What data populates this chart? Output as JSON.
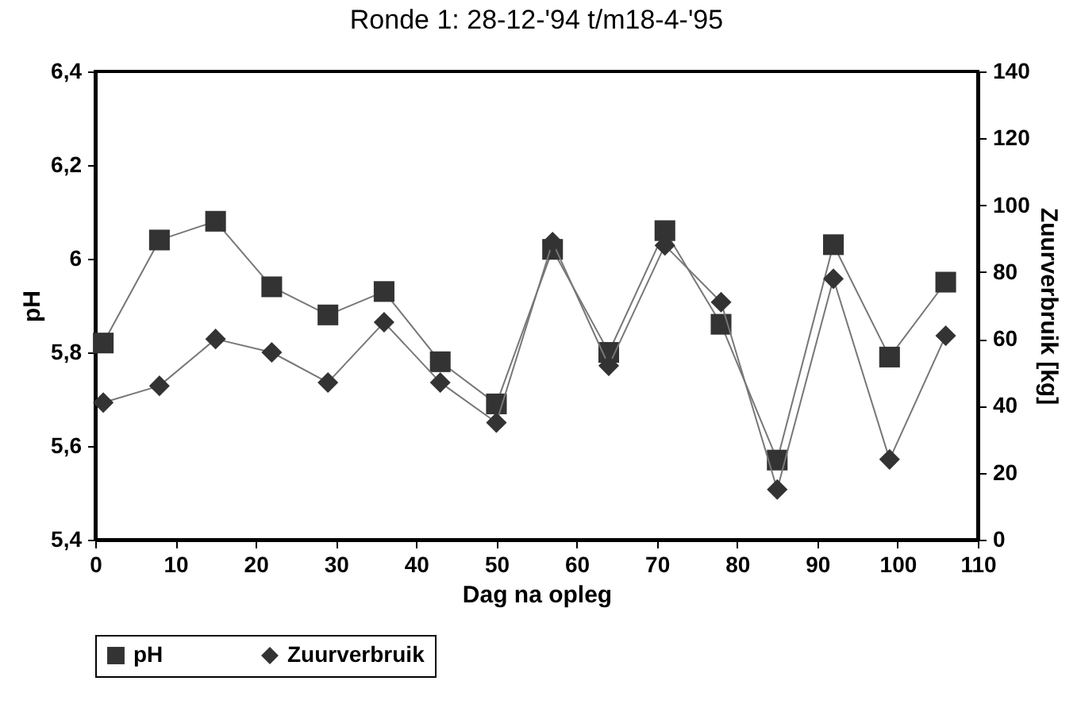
{
  "chart_data": {
    "type": "line",
    "title": "Ronde 1: 28-12-'94 t/m18-4-'95",
    "xlabel": "Dag na opleg",
    "ylabel": "pH",
    "y2label": "Zuurverbruik [kg]",
    "x": [
      1,
      8,
      15,
      22,
      29,
      36,
      43,
      50,
      57,
      64,
      71,
      78,
      85,
      92,
      99,
      106
    ],
    "series": [
      {
        "name": "pH",
        "color": "#333333",
        "marker": "square",
        "values": [
          5.82,
          6.04,
          6.08,
          5.94,
          5.88,
          5.93,
          5.78,
          5.69,
          6.02,
          5.8,
          6.06,
          5.86,
          5.57,
          6.03,
          5.79,
          5.95
        ]
      },
      {
        "name": "Zuurverbruik",
        "color": "#333333",
        "marker": "diamond",
        "axis": "y2",
        "values": [
          41,
          46,
          60,
          56,
          47,
          65,
          47,
          35,
          89,
          52,
          88,
          71,
          15,
          78,
          24,
          61
        ]
      }
    ],
    "xlim": [
      0,
      110
    ],
    "xticks": [
      0,
      10,
      20,
      30,
      40,
      50,
      60,
      70,
      80,
      90,
      100,
      110
    ],
    "ylim": [
      5.4,
      6.4
    ],
    "yticks": [
      {
        "value": 5.4,
        "label": "5,4"
      },
      {
        "value": 5.6,
        "label": "5,6"
      },
      {
        "value": 5.8,
        "label": "5,8"
      },
      {
        "value": 6,
        "label": "6"
      },
      {
        "value": 6.2,
        "label": "6,2"
      },
      {
        "value": 6.4,
        "label": "6,4"
      }
    ],
    "y2lim": [
      0,
      140
    ],
    "y2ticks": [
      0,
      20,
      40,
      60,
      80,
      100,
      120,
      140
    ],
    "grid": false,
    "legend": "bottom",
    "line_style": "solid"
  }
}
